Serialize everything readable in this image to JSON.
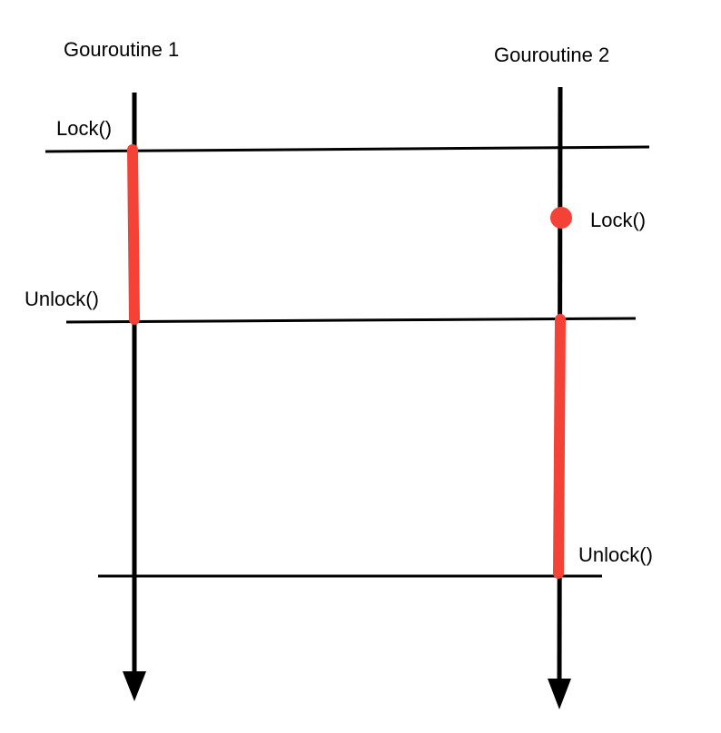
{
  "diagram": {
    "goroutine_1": {
      "title": "Gouroutine 1",
      "lock_label": "Lock()",
      "unlock_label": "Unlock()"
    },
    "goroutine_2": {
      "title": "Gouroutine 2",
      "lock_label": "Lock()",
      "unlock_label": "Unlock()"
    }
  },
  "colors": {
    "timeline": "#000000",
    "lock_held": "#f44336",
    "background": "#ffffff"
  }
}
